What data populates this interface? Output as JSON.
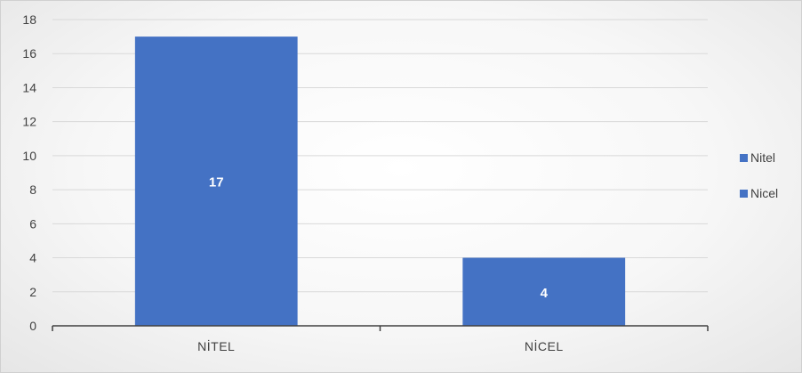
{
  "chart_data": {
    "type": "bar",
    "categories": [
      "NİTEL",
      "NİCEL"
    ],
    "values": [
      17,
      4
    ],
    "data_labels": [
      "17",
      "4"
    ],
    "ylim": [
      0,
      18
    ],
    "yticks": [
      0,
      2,
      4,
      6,
      8,
      10,
      12,
      14,
      16,
      18
    ],
    "grid": true,
    "legend": {
      "placement": "right",
      "entries": [
        {
          "label": "Nitel",
          "color": "#4472c4"
        },
        {
          "label": "Nicel",
          "color": "#4472c4"
        }
      ]
    },
    "bar_color": "#4472c4",
    "title": "",
    "xlabel": "",
    "ylabel": ""
  }
}
